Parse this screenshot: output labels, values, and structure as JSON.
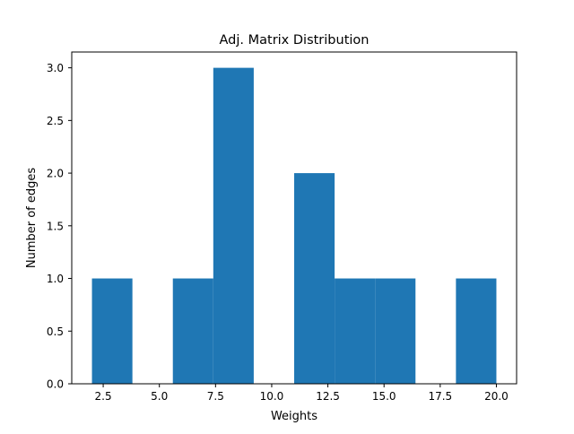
{
  "chart_data": {
    "type": "bar",
    "title": "Adj. Matrix Distribution",
    "xlabel": "Weights",
    "ylabel": "Number of edges",
    "bin_edges": [
      2.0,
      3.8,
      5.6,
      7.4,
      9.2,
      11.0,
      12.8,
      14.6,
      16.4,
      18.2,
      20.0
    ],
    "values": [
      1,
      0,
      1,
      3,
      0,
      2,
      1,
      1,
      0,
      1
    ],
    "xlim": [
      1.1,
      20.9
    ],
    "ylim": [
      0,
      3.15
    ],
    "xticks": [
      2.5,
      5.0,
      7.5,
      10.0,
      12.5,
      15.0,
      17.5,
      20.0
    ],
    "xtick_labels": [
      "2.5",
      "5.0",
      "7.5",
      "10.0",
      "12.5",
      "15.0",
      "17.5",
      "20.0"
    ],
    "yticks": [
      0.0,
      0.5,
      1.0,
      1.5,
      2.0,
      2.5,
      3.0
    ],
    "ytick_labels": [
      "0.0",
      "0.5",
      "1.0",
      "1.5",
      "2.0",
      "2.5",
      "3.0"
    ],
    "bar_color": "#1f77b4",
    "grid": false,
    "legend": "none"
  }
}
